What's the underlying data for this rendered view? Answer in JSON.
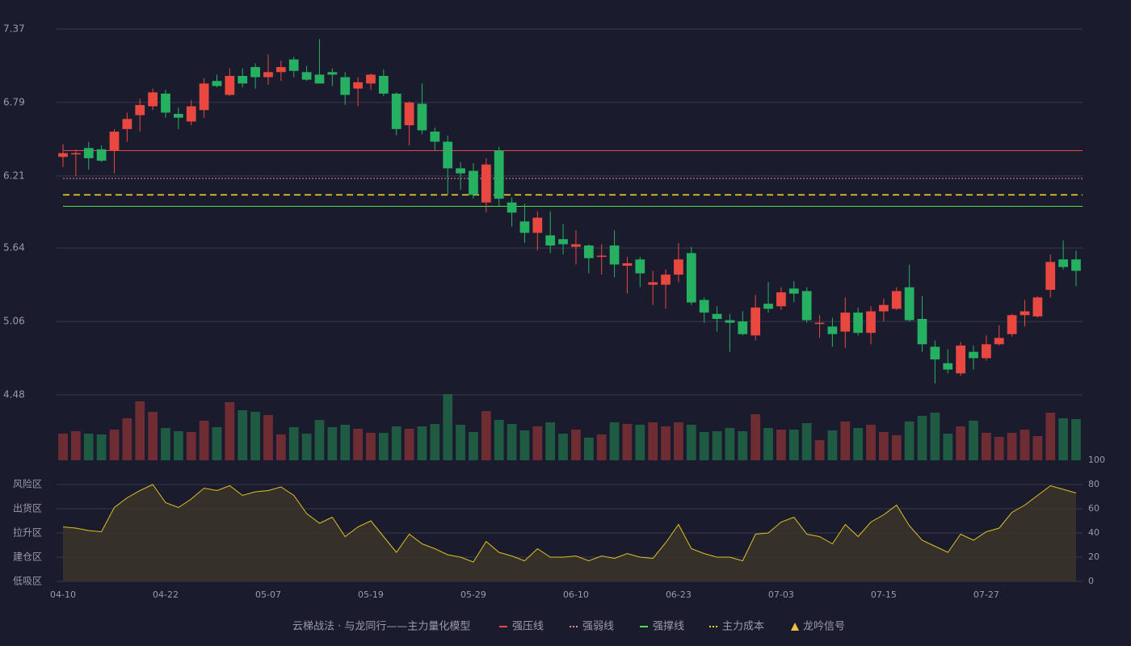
{
  "chart_data": {
    "type": "candlestick",
    "categories": [
      "04-10",
      null,
      null,
      null,
      null,
      null,
      null,
      null,
      "04-22",
      null,
      null,
      null,
      null,
      null,
      null,
      null,
      "05-07",
      null,
      null,
      null,
      null,
      null,
      null,
      null,
      "05-19",
      null,
      null,
      null,
      null,
      null,
      null,
      null,
      "05-29",
      null,
      null,
      null,
      null,
      null,
      null,
      null,
      "06-10",
      null,
      null,
      null,
      null,
      null,
      null,
      null,
      "06-23",
      null,
      null,
      null,
      null,
      null,
      null,
      null,
      "07-03",
      null,
      null,
      null,
      null,
      null,
      null,
      null,
      "07-15",
      null,
      null,
      null,
      null,
      null,
      null,
      null,
      "07-27",
      null,
      null,
      null,
      null,
      null,
      null,
      null
    ],
    "open": [
      6.36,
      6.38,
      6.43,
      6.42,
      6.41,
      6.58,
      6.69,
      6.76,
      6.86,
      6.7,
      6.64,
      6.73,
      6.96,
      6.85,
      7.0,
      7.07,
      6.99,
      7.03,
      7.13,
      7.03,
      7.01,
      7.03,
      6.99,
      6.9,
      6.94,
      7.0,
      6.86,
      6.61,
      6.78,
      6.56,
      6.48,
      6.27,
      6.25,
      6.0,
      6.41,
      6.0,
      5.85,
      5.76,
      5.74,
      5.71,
      5.65,
      5.66,
      5.57,
      5.66,
      5.5,
      5.55,
      5.35,
      5.35,
      5.43,
      5.6,
      5.23,
      5.12,
      5.07,
      5.06,
      4.95,
      5.2,
      5.18,
      5.32,
      5.3,
      5.04,
      5.02,
      4.98,
      5.13,
      4.97,
      5.14,
      5.16,
      5.33,
      5.08,
      4.86,
      4.73,
      4.65,
      4.82,
      4.77,
      4.88,
      4.96,
      5.11,
      5.1,
      5.31,
      5.55,
      5.55
    ],
    "high": [
      6.46,
      6.42,
      6.48,
      6.45,
      6.58,
      6.71,
      6.82,
      6.9,
      6.89,
      6.75,
      6.81,
      6.98,
      7.01,
      7.06,
      7.06,
      7.1,
      7.17,
      7.12,
      7.15,
      7.08,
      7.29,
      7.06,
      7.03,
      6.99,
      7.02,
      7.05,
      6.87,
      6.8,
      6.94,
      6.59,
      6.53,
      6.32,
      6.31,
      6.35,
      6.44,
      6.04,
      5.99,
      5.93,
      5.93,
      5.83,
      5.78,
      5.67,
      5.67,
      5.78,
      5.57,
      5.57,
      5.46,
      5.47,
      5.68,
      5.65,
      5.25,
      5.18,
      5.12,
      5.14,
      5.27,
      5.37,
      5.33,
      5.38,
      5.33,
      5.11,
      5.09,
      5.25,
      5.17,
      5.18,
      5.24,
      5.33,
      5.51,
      5.26,
      4.91,
      4.84,
      4.9,
      4.87,
      4.95,
      5.03,
      5.12,
      5.23,
      5.26,
      5.59,
      5.7,
      5.62
    ],
    "low": [
      6.28,
      6.21,
      6.26,
      6.32,
      6.23,
      6.48,
      6.56,
      6.73,
      6.67,
      6.58,
      6.61,
      6.67,
      6.91,
      6.84,
      6.91,
      6.9,
      6.93,
      6.96,
      6.99,
      6.96,
      6.94,
      6.92,
      6.77,
      6.76,
      6.89,
      6.84,
      6.53,
      6.45,
      6.54,
      6.41,
      6.06,
      6.1,
      6.03,
      5.92,
      5.97,
      5.81,
      5.68,
      5.62,
      5.6,
      5.59,
      5.51,
      5.44,
      5.43,
      5.41,
      5.28,
      5.33,
      5.19,
      5.16,
      5.37,
      5.19,
      5.05,
      4.98,
      4.82,
      4.95,
      4.91,
      5.13,
      5.15,
      5.21,
      5.05,
      4.93,
      4.86,
      4.85,
      4.95,
      4.88,
      5.06,
      5.15,
      5.06,
      4.82,
      4.57,
      4.65,
      4.63,
      4.68,
      4.75,
      4.87,
      4.94,
      5.02,
      5.09,
      5.25,
      5.47,
      5.34
    ],
    "close": [
      6.39,
      6.39,
      6.35,
      6.33,
      6.56,
      6.66,
      6.77,
      6.87,
      6.71,
      6.67,
      6.76,
      6.94,
      6.92,
      7.0,
      6.94,
      6.99,
      7.03,
      7.07,
      7.04,
      6.97,
      6.94,
      7.01,
      6.85,
      6.95,
      7.01,
      6.86,
      6.58,
      6.79,
      6.57,
      6.48,
      6.27,
      6.23,
      6.06,
      6.3,
      6.03,
      5.92,
      5.76,
      5.88,
      5.66,
      5.67,
      5.67,
      5.56,
      5.58,
      5.51,
      5.52,
      5.44,
      5.37,
      5.43,
      5.55,
      5.21,
      5.13,
      5.08,
      5.05,
      4.96,
      5.17,
      5.16,
      5.29,
      5.28,
      5.07,
      5.05,
      4.96,
      5.13,
      4.97,
      5.14,
      5.19,
      5.3,
      5.07,
      4.88,
      4.76,
      4.68,
      4.87,
      4.77,
      4.88,
      4.93,
      5.11,
      5.14,
      5.25,
      5.53,
      5.49,
      5.46
    ],
    "up_color": "#e8483f",
    "down_color": "#26b061",
    "volume": [
      33,
      36,
      33,
      32,
      38,
      52,
      73,
      60,
      40,
      36,
      35,
      49,
      41,
      72,
      62,
      60,
      56,
      32,
      41,
      33,
      50,
      41,
      44,
      39,
      34,
      34,
      42,
      39,
      42,
      45,
      82,
      44,
      35,
      61,
      50,
      45,
      37,
      42,
      47,
      33,
      38,
      28,
      32,
      47,
      45,
      44,
      47,
      42,
      47,
      44,
      35,
      36,
      40,
      36,
      57,
      40,
      38,
      38,
      46,
      25,
      37,
      48,
      40,
      44,
      35,
      31,
      48,
      55,
      59,
      33,
      42,
      49,
      34,
      29,
      34,
      38,
      30,
      59,
      52,
      51
    ],
    "volume_up_color": "#6e2d33",
    "volume_down_color": "#1f5a43",
    "ylim": [
      4.48,
      7.37
    ],
    "yticks": [
      4.48,
      5.06,
      5.64,
      6.21,
      6.79,
      7.37
    ],
    "grid": true,
    "levels": [
      {
        "name": "强压线",
        "value": 6.41,
        "color": "#e8484a",
        "style": "solid"
      },
      {
        "name": "强弱线",
        "value": 6.19,
        "color": "#f08a9a",
        "style": "dotted"
      },
      {
        "name": "强撑线",
        "value": 5.97,
        "color": "#52e052",
        "style": "solid"
      },
      {
        "name": "主力成本",
        "value": 6.06,
        "color": "#f0d020",
        "style": "dashed"
      }
    ],
    "signal": {
      "name": "龙吟信号",
      "color": "#f0c040"
    },
    "legend_title": "云梯战法 · 与龙同行——主力量化模型",
    "legend_title_color": "#e8c870",
    "indicator": {
      "color": "#e0c020",
      "fill": "#3a3428",
      "values": [
        45,
        44,
        42,
        41,
        61,
        69,
        75,
        80,
        65,
        61,
        68,
        77,
        75,
        79,
        71,
        74,
        75,
        78,
        71,
        56,
        48,
        53,
        37,
        45,
        50,
        37,
        24,
        39,
        31,
        27,
        22,
        20,
        16,
        33,
        24,
        21,
        17,
        27,
        20,
        20,
        21,
        17,
        21,
        19,
        23,
        20,
        19,
        32,
        47,
        27,
        23,
        20,
        20,
        17,
        39,
        40,
        49,
        53,
        39,
        37,
        31,
        47,
        37,
        49,
        55,
        63,
        46,
        34,
        29,
        24,
        39,
        34,
        41,
        44,
        57,
        63,
        71,
        79,
        76,
        73
      ],
      "ylim": [
        0,
        100
      ],
      "yticks": [
        0,
        20,
        40,
        60,
        80,
        100
      ],
      "ytick_colors": [
        "#e84050",
        "#e8a33d",
        "#4a90e2",
        "#e040e0",
        "#e8a33d",
        "#40e040"
      ],
      "zones": [
        {
          "value": 80,
          "label": "风险区",
          "color": "#e8a33d"
        },
        {
          "value": 60,
          "label": "出货区",
          "color": "#e040e0"
        },
        {
          "value": 40,
          "label": "拉升区",
          "color": "#4a90e2"
        },
        {
          "value": 20,
          "label": "建仓区",
          "color": "#e86050"
        },
        {
          "value": 0,
          "label": "低吸区",
          "color": "#e84050"
        }
      ]
    }
  }
}
